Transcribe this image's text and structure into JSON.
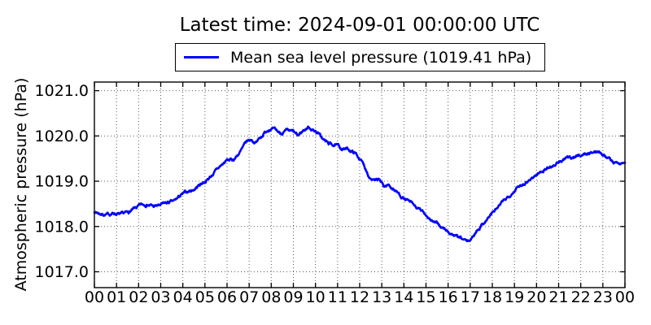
{
  "header": {
    "title": "Latest time: 2024-09-01 00:00:00 UTC"
  },
  "legend": {
    "label": "Mean sea level pressure (1019.41 hPa)",
    "line_color": "#0000ff",
    "position": "upper center, above axes, boxed"
  },
  "latest_value_hpa": "1019.41",
  "colors": {
    "line": "#0000ff",
    "frame": "#000000",
    "grid": "#000000",
    "text": "#000000",
    "background": "#ffffff"
  },
  "chart_data": {
    "type": "line",
    "title": "Latest time: 2024-09-01 00:00:00 UTC",
    "xlabel": "",
    "ylabel": "Atmospheric pressure (hPa)",
    "legend": [
      "Mean sea level pressure (1019.41 hPa)"
    ],
    "grid": "dotted, both axes, every hour / every 1 hPa",
    "xlim": [
      0,
      24
    ],
    "ylim": [
      1016.65,
      1021.19
    ],
    "x_tick_values": [
      0,
      1,
      2,
      3,
      4,
      5,
      6,
      7,
      8,
      9,
      10,
      11,
      12,
      13,
      14,
      15,
      16,
      17,
      18,
      19,
      20,
      21,
      22,
      23,
      24
    ],
    "x_tick_labels": [
      "00",
      "01",
      "02",
      "03",
      "04",
      "05",
      "06",
      "07",
      "08",
      "09",
      "10",
      "11",
      "12",
      "13",
      "14",
      "15",
      "16",
      "17",
      "18",
      "19",
      "20",
      "21",
      "22",
      "23",
      "00"
    ],
    "y_tick_values": [
      1017.0,
      1018.0,
      1019.0,
      1020.0,
      1021.0
    ],
    "y_tick_labels": [
      "1017.0",
      "1018.0",
      "1019.0",
      "1020.0",
      "1021.0"
    ],
    "series": [
      {
        "name": "Mean sea level pressure",
        "unit": "hPa",
        "latest": 1019.41,
        "sampling": "approx 1-minute data reconstructed from control points + small noise",
        "control_points_hours": [
          0.0,
          0.3,
          0.6,
          0.9,
          1.2,
          1.5,
          1.8,
          2.1,
          2.4,
          2.7,
          3.0,
          3.3,
          3.6,
          3.9,
          4.2,
          4.5,
          4.8,
          5.1,
          5.4,
          5.7,
          6.0,
          6.3,
          6.6,
          6.9,
          7.1,
          7.3,
          7.6,
          7.9,
          8.1,
          8.4,
          8.7,
          9.0,
          9.2,
          9.45,
          9.7,
          9.9,
          10.1,
          10.35,
          10.6,
          10.9,
          11.2,
          11.5,
          11.8,
          12.0,
          12.2,
          12.45,
          12.7,
          12.9,
          13.1,
          13.3,
          13.6,
          14.0,
          14.3,
          14.6,
          15.0,
          15.3,
          15.6,
          16.0,
          16.3,
          16.6,
          16.9,
          17.1,
          17.3,
          17.6,
          18.0,
          18.3,
          18.6,
          19.0,
          19.3,
          19.6,
          20.0,
          20.3,
          20.6,
          21.0,
          21.3,
          21.6,
          22.0,
          22.3,
          22.6,
          22.9,
          23.1,
          23.3,
          23.5,
          23.7,
          24.0
        ],
        "control_points_values": [
          1018.33,
          1018.28,
          1018.26,
          1018.3,
          1018.25,
          1018.3,
          1018.38,
          1018.46,
          1018.5,
          1018.44,
          1018.47,
          1018.52,
          1018.55,
          1018.68,
          1018.76,
          1018.82,
          1018.94,
          1019.03,
          1019.18,
          1019.33,
          1019.46,
          1019.48,
          1019.65,
          1019.87,
          1019.92,
          1019.85,
          1020.02,
          1020.17,
          1020.14,
          1020.06,
          1020.1,
          1020.08,
          1019.99,
          1020.12,
          1020.2,
          1020.13,
          1020.08,
          1019.92,
          1019.83,
          1019.8,
          1019.72,
          1019.7,
          1019.62,
          1019.5,
          1019.35,
          1019.1,
          1019.0,
          1019.02,
          1018.88,
          1018.92,
          1018.8,
          1018.62,
          1018.52,
          1018.4,
          1018.26,
          1018.12,
          1018.02,
          1017.88,
          1017.8,
          1017.72,
          1017.66,
          1017.75,
          1017.92,
          1018.08,
          1018.3,
          1018.44,
          1018.6,
          1018.81,
          1018.92,
          1019.02,
          1019.14,
          1019.24,
          1019.32,
          1019.41,
          1019.49,
          1019.53,
          1019.58,
          1019.61,
          1019.64,
          1019.66,
          1019.58,
          1019.5,
          1019.42,
          1019.4,
          1019.41
        ],
        "noise": {
          "seed": 7,
          "step": 0.04,
          "decay": 0.86,
          "points_per_hour": 60
        }
      }
    ]
  }
}
